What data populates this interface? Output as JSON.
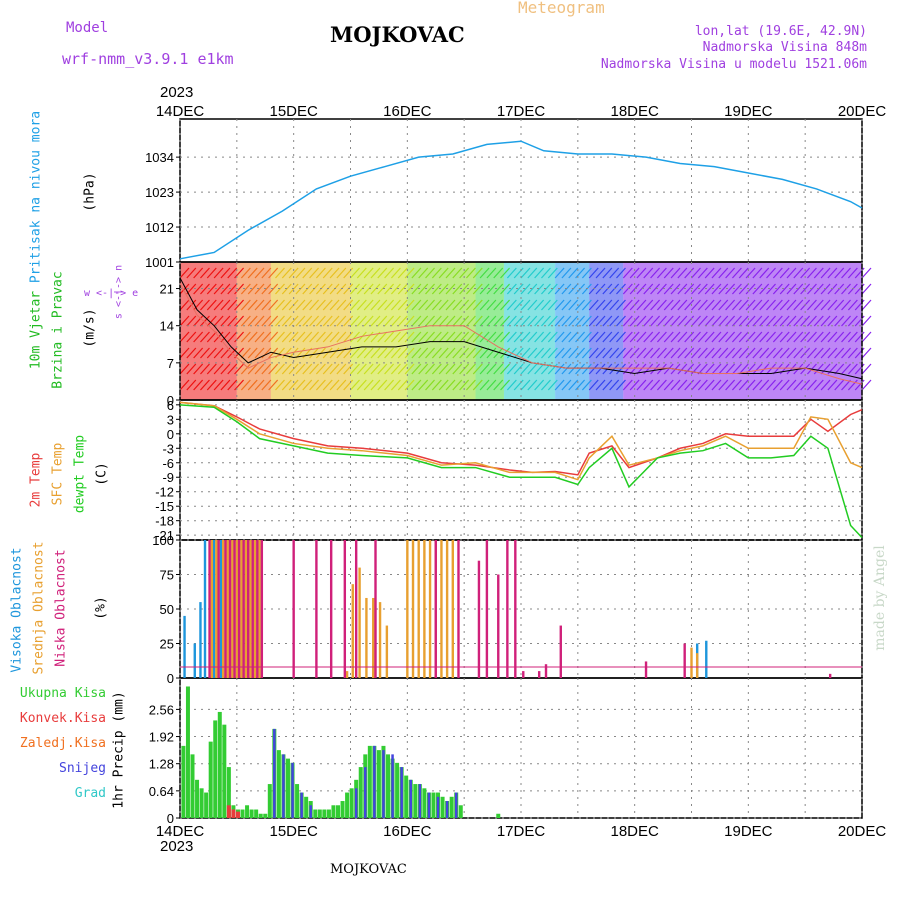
{
  "header": {
    "model_label": "Model",
    "model_name": "wrf-nmm_v3.9.1 e1km",
    "title": "MOJKOVAC",
    "meteogram": "Meteogram",
    "lonlat": "lon,lat (19.6E, 42.9N)",
    "altitude": "Nadmorska Visina 848m",
    "model_altitude": "Nadmorska Visina u modelu 1521.06m",
    "year_top": "2023",
    "year_bottom": "2023",
    "footer": "MOJKOVAC",
    "watermark": "made by Angel"
  },
  "colors": {
    "pressure": "#1ea0e6",
    "wind_text": "#22bb22",
    "temp": "#e83c3c",
    "sfc_temp": "#e8a030",
    "dewpt": "#22cc22",
    "high_cloud": "#1e96dc",
    "mid_cloud": "#e8a030",
    "low_cloud": "#d0207a",
    "precip_total": "#33cc33",
    "precip_conv": "#e83c3c",
    "precip_frz": "#f07020",
    "snow": "#4444dd",
    "grad": "#30c8c8",
    "header_purple": "#a040e0",
    "meteogram": "#f0c080"
  },
  "chart_data": [
    {
      "type": "line",
      "panel": "pressure",
      "ylabels": [
        "Pritisak na nivou mora",
        "(hPa)"
      ],
      "x_ticks": [
        "14DEC",
        "15DEC",
        "16DEC",
        "17DEC",
        "18DEC",
        "19DEC",
        "20DEC"
      ],
      "ylim": [
        1001,
        1046
      ],
      "yticks": [
        "1001",
        "1012",
        "1023",
        "1034"
      ],
      "grid": true,
      "series": [
        {
          "x": [
            0,
            0.3,
            0.6,
            0.9,
            1.2,
            1.5,
            1.8,
            2.1,
            2.4,
            2.7,
            3.0,
            3.2,
            3.5,
            3.8,
            4.1,
            4.4,
            4.7,
            5.0,
            5.3,
            5.6,
            5.9,
            6.0
          ],
          "values": [
            1002,
            1004,
            1011,
            1017,
            1024,
            1028,
            1031,
            1034,
            1035,
            1038,
            1039,
            1036,
            1035,
            1035,
            1034,
            1032,
            1031,
            1029,
            1027,
            1024,
            1020,
            1018
          ]
        }
      ]
    },
    {
      "type": "line",
      "panel": "wind",
      "ylabels": [
        "10m Vjetar",
        "Brzina i Pravac",
        "(m/s)"
      ],
      "ylim": [
        0,
        26
      ],
      "yticks": [
        "0",
        "7",
        "14",
        "21"
      ],
      "compass": "w <-|-> e",
      "compass_vertical": "s <-|-> n",
      "series": [
        {
          "x": [
            0,
            0.15,
            0.3,
            0.45,
            0.6,
            0.8,
            1.0,
            1.3,
            1.6,
            1.9,
            2.2,
            2.5,
            2.8,
            3.1,
            3.4,
            3.7,
            4.0,
            4.3,
            4.6,
            4.9,
            5.2,
            5.5,
            5.8,
            6.0
          ],
          "values": [
            23,
            17,
            14,
            10,
            7,
            9,
            8,
            9,
            10,
            10,
            11,
            11,
            9,
            7,
            6,
            6,
            5,
            6,
            5,
            5,
            5,
            6,
            5,
            4
          ]
        },
        {
          "x": [
            0,
            0.15,
            0.3,
            0.45,
            0.6,
            0.8,
            1.0,
            1.3,
            1.6,
            1.9,
            2.2,
            2.5,
            2.8,
            3.1,
            3.4,
            3.7,
            4.0,
            4.3,
            4.6,
            4.9,
            5.2,
            5.5,
            5.8,
            6.0
          ],
          "values": [
            22,
            16,
            13,
            9,
            6,
            8,
            9,
            10,
            12,
            13,
            14,
            14,
            10,
            7,
            6,
            6,
            6,
            6,
            5,
            5,
            6,
            6,
            4,
            3
          ]
        }
      ]
    },
    {
      "type": "line",
      "panel": "temperature",
      "ylabels": [
        "2m Temp",
        "SFC Temp",
        "dewpt Temp",
        "(C)"
      ],
      "ylim": [
        -22,
        7
      ],
      "yticks": [
        "6",
        "3",
        "0",
        "-3",
        "-6",
        "-9",
        "-12",
        "-15",
        "-18",
        "-21"
      ],
      "series": [
        {
          "name": "2m Temp",
          "x": [
            0,
            0.3,
            0.5,
            0.7,
            1.0,
            1.3,
            1.6,
            2.0,
            2.3,
            2.6,
            2.9,
            3.1,
            3.3,
            3.5,
            3.6,
            3.8,
            3.95,
            4.2,
            4.4,
            4.6,
            4.8,
            5.0,
            5.2,
            5.4,
            5.55,
            5.7,
            5.9,
            6.0
          ],
          "values": [
            6.5,
            5.8,
            3.5,
            1,
            -1,
            -2.5,
            -3,
            -4,
            -6,
            -6.5,
            -7.5,
            -8,
            -7.8,
            -8.5,
            -4,
            -2.5,
            -7,
            -5,
            -3,
            -2,
            0,
            -0.5,
            -0.5,
            -0.5,
            3,
            0.5,
            4,
            5
          ]
        },
        {
          "name": "SFC Temp",
          "x": [
            0,
            0.3,
            0.5,
            0.7,
            1.0,
            1.3,
            1.6,
            2.0,
            2.3,
            2.6,
            2.9,
            3.1,
            3.3,
            3.5,
            3.6,
            3.8,
            3.95,
            4.2,
            4.4,
            4.6,
            4.8,
            5.0,
            5.2,
            5.4,
            5.55,
            5.7,
            5.9,
            6.0
          ],
          "values": [
            6.5,
            5.8,
            3,
            0,
            -2,
            -3,
            -3.5,
            -4.5,
            -6.5,
            -6,
            -8,
            -8,
            -8,
            -9.5,
            -5,
            -0.5,
            -6.5,
            -5,
            -3.5,
            -2.5,
            -0.5,
            -3,
            -3,
            -3,
            3.5,
            3,
            -6,
            -7
          ]
        },
        {
          "name": "dewpt Temp",
          "x": [
            0,
            0.3,
            0.5,
            0.7,
            1.0,
            1.3,
            1.6,
            2.0,
            2.3,
            2.6,
            2.9,
            3.1,
            3.3,
            3.5,
            3.6,
            3.8,
            3.95,
            4.2,
            4.4,
            4.6,
            4.8,
            5.0,
            5.2,
            5.4,
            5.55,
            5.7,
            5.9,
            6.0
          ],
          "values": [
            6,
            5.5,
            2.5,
            -1,
            -2.5,
            -4,
            -4.5,
            -5,
            -7,
            -7,
            -9,
            -9,
            -9,
            -10.5,
            -7,
            -3,
            -11,
            -5,
            -4,
            -3.5,
            -2,
            -5,
            -5,
            -4.5,
            -0.5,
            -3,
            -19,
            -21.5
          ]
        }
      ]
    },
    {
      "type": "bar",
      "panel": "clouds",
      "ylabels": [
        "Visoka Oblacnost",
        "Srednja Oblacnost",
        "Niska Oblacnost",
        "(%)"
      ],
      "ylim": [
        0,
        100
      ],
      "yticks": [
        "0",
        "25",
        "50",
        "75",
        "100"
      ],
      "series": [
        {
          "name": "Visoka Oblacnost",
          "x": [
            0.04,
            0.13,
            0.18,
            0.22,
            0.3,
            0.36,
            4.55,
            4.63
          ],
          "values": [
            45,
            25,
            55,
            100,
            100,
            100,
            25,
            27
          ]
        },
        {
          "name": "Srednja Oblacnost",
          "x": [
            0.28,
            0.32,
            0.38,
            0.42,
            0.46,
            0.5,
            0.54,
            0.58,
            0.62,
            0.66,
            0.7,
            1.47,
            1.52,
            1.58,
            1.64,
            1.7,
            1.76,
            1.82,
            2.0,
            2.05,
            2.1,
            2.15,
            2.2,
            2.25,
            2.3,
            2.35,
            2.4,
            4.5,
            4.55
          ],
          "values": [
            100,
            100,
            100,
            100,
            100,
            100,
            100,
            100,
            100,
            100,
            100,
            5,
            68,
            80,
            58,
            58,
            55,
            38,
            100,
            100,
            100,
            100,
            100,
            100,
            100,
            100,
            100,
            22,
            18
          ]
        },
        {
          "name": "Niska Oblacnost",
          "x": [
            0.26,
            0.34,
            0.4,
            0.44,
            0.48,
            0.52,
            0.56,
            0.6,
            0.64,
            0.68,
            0.72,
            1.0,
            1.2,
            1.33,
            1.45,
            1.55,
            1.72,
            2.25,
            2.45,
            2.63,
            2.7,
            2.8,
            2.88,
            2.95,
            3.02,
            3.16,
            3.22,
            3.35,
            4.1,
            4.44,
            5.72
          ],
          "values": [
            100,
            100,
            100,
            100,
            100,
            100,
            100,
            100,
            100,
            100,
            100,
            100,
            100,
            100,
            100,
            100,
            100,
            100,
            100,
            85,
            100,
            75,
            100,
            100,
            5,
            5,
            10,
            38,
            12,
            25,
            3
          ]
        }
      ]
    },
    {
      "type": "bar",
      "panel": "precip",
      "ylabels": [
        "Ukupna Kisa",
        "Konvek.Kisa",
        "Zaledj.Kisa",
        "Snijeg",
        "Grad",
        "1hr Precip (mm)"
      ],
      "ylim": [
        0,
        3.3
      ],
      "yticks": [
        "0",
        "0.64",
        "1.28",
        "1.92",
        "2.56"
      ],
      "x_ticks": [
        "14DEC",
        "15DEC",
        "16DEC",
        "17DEC",
        "18DEC",
        "19DEC",
        "20DEC"
      ],
      "series": [
        {
          "name": "Ukupna Kisa",
          "x": [
            0.03,
            0.07,
            0.11,
            0.15,
            0.19,
            0.23,
            0.27,
            0.31,
            0.35,
            0.39,
            0.43,
            0.47,
            0.51,
            0.55,
            0.59,
            0.63,
            0.67,
            0.71,
            0.75,
            0.79,
            0.83,
            0.87,
            0.91,
            0.95,
            0.99,
            1.03,
            1.07,
            1.11,
            1.15,
            1.19,
            1.23,
            1.27,
            1.31,
            1.35,
            1.39,
            1.43,
            1.47,
            1.51,
            1.55,
            1.59,
            1.63,
            1.67,
            1.71,
            1.75,
            1.79,
            1.83,
            1.87,
            1.91,
            1.95,
            1.99,
            2.03,
            2.07,
            2.11,
            2.15,
            2.19,
            2.23,
            2.27,
            2.31,
            2.35,
            2.39,
            2.43,
            2.47,
            2.8
          ],
          "values": [
            1.7,
            3.1,
            1.5,
            0.9,
            0.7,
            0.6,
            1.8,
            2.3,
            2.5,
            2.2,
            1.2,
            0.3,
            0.2,
            0.2,
            0.3,
            0.2,
            0.2,
            0.1,
            0.1,
            0.8,
            2.1,
            1.6,
            1.5,
            1.4,
            1.3,
            0.8,
            0.6,
            0.5,
            0.4,
            0.2,
            0.2,
            0.2,
            0.2,
            0.3,
            0.3,
            0.4,
            0.6,
            0.7,
            0.9,
            1.2,
            1.5,
            1.7,
            1.7,
            1.6,
            1.7,
            1.5,
            1.4,
            1.3,
            1.2,
            1.0,
            0.9,
            0.8,
            0.8,
            0.7,
            0.6,
            0.6,
            0.6,
            0.5,
            0.4,
            0.5,
            0.6,
            0.3,
            0.1
          ]
        },
        {
          "name": "Snijeg",
          "x": [
            0.83,
            0.91,
            0.99,
            1.07,
            1.15,
            1.55,
            1.63,
            1.71,
            1.79,
            1.87,
            1.95,
            2.03,
            2.11,
            2.19,
            2.27,
            2.35,
            2.43
          ],
          "values": [
            2.1,
            1.5,
            1.3,
            0.6,
            0.3,
            0.7,
            1.2,
            1.7,
            1.6,
            1.5,
            1.2,
            0.9,
            0.8,
            0.6,
            0.5,
            0.4,
            0.6
          ]
        },
        {
          "name": "Konvek.Kisa",
          "x": [
            0.43,
            0.47,
            0.51
          ],
          "values": [
            0.3,
            0.2,
            0.15
          ]
        }
      ]
    }
  ]
}
